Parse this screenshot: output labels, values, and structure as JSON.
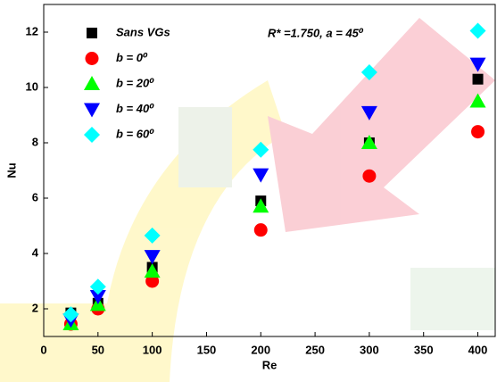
{
  "chart_data": {
    "type": "scatter",
    "xlabel": "Re",
    "ylabel": "Nu",
    "annotation": "R* =1.750, a = 45⁰",
    "x": [
      25,
      50,
      100,
      200,
      300,
      400
    ],
    "xlim": [
      0,
      416
    ],
    "xticks": [
      0,
      50,
      100,
      150,
      200,
      250,
      300,
      350,
      400
    ],
    "ylim": [
      1,
      13
    ],
    "yticks": [
      2,
      4,
      6,
      8,
      10,
      12
    ],
    "legend": "upper-left",
    "series": [
      {
        "name": "Sans VGs",
        "color": "#000000",
        "marker": "square",
        "values": [
          1.85,
          2.2,
          3.5,
          5.9,
          8.0,
          10.3
        ]
      },
      {
        "name": "b = 0⁰",
        "color": "#ff0000",
        "marker": "circle",
        "values": [
          1.45,
          2.0,
          3.0,
          4.85,
          6.8,
          8.4
        ]
      },
      {
        "name": "b = 20⁰",
        "color": "#00ff00",
        "marker": "triangle-up",
        "values": [
          1.45,
          2.15,
          3.35,
          5.7,
          8.0,
          9.5
        ]
      },
      {
        "name": "b = 40⁰",
        "color": "#0000ff",
        "marker": "triangle-down",
        "values": [
          1.6,
          2.45,
          3.9,
          6.85,
          9.1,
          10.85
        ]
      },
      {
        "name": "b = 60⁰",
        "color": "#00ffff",
        "marker": "diamond",
        "values": [
          1.8,
          2.8,
          4.65,
          7.75,
          10.55,
          12.05
        ]
      }
    ]
  }
}
